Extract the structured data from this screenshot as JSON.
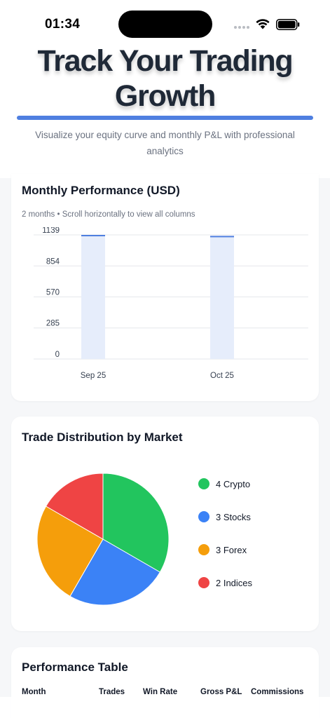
{
  "status_bar": {
    "time": "01:34",
    "icons": [
      "signal-dots-icon",
      "wifi-icon",
      "battery-icon"
    ]
  },
  "hero": {
    "title_line1": "Track Your Trading",
    "title_line2": "Growth",
    "subtitle_line1": "Visualize your equity curve and monthly P&L with professional",
    "subtitle_line2": "analytics",
    "accent_color": "#4f7fe0"
  },
  "monthly_performance": {
    "title": "Monthly Performance (USD)",
    "meta": "2 months • Scroll horizontally to view all columns",
    "chart_data": {
      "type": "bar",
      "categories": [
        "Sep 25",
        "Oct 25"
      ],
      "values": [
        1139,
        1130
      ],
      "y_ticks": [
        "1139",
        "854",
        "570",
        "285",
        "0"
      ],
      "ylim": [
        0,
        1139
      ],
      "grid": true,
      "bar_fill": "#e6edfb",
      "bar_top_color": "#4f7fe0"
    }
  },
  "trade_distribution": {
    "title": "Trade Distribution by Market",
    "chart_data": {
      "type": "pie",
      "labels": [
        "Crypto",
        "Stocks",
        "Forex",
        "Indices"
      ],
      "values": [
        4,
        3,
        3,
        2
      ],
      "colors": [
        "#22c55e",
        "#3b82f6",
        "#f59e0b",
        "#ef4444"
      ]
    },
    "legend": [
      {
        "label": "4 Crypto",
        "color": "#22c55e"
      },
      {
        "label": "3 Stocks",
        "color": "#3b82f6"
      },
      {
        "label": "3 Forex",
        "color": "#f59e0b"
      },
      {
        "label": "2 Indices",
        "color": "#ef4444"
      }
    ]
  },
  "performance_table": {
    "title": "Performance Table",
    "columns": [
      "Month",
      "Trades",
      "Win Rate",
      "Gross P&L",
      "Commissions"
    ]
  }
}
